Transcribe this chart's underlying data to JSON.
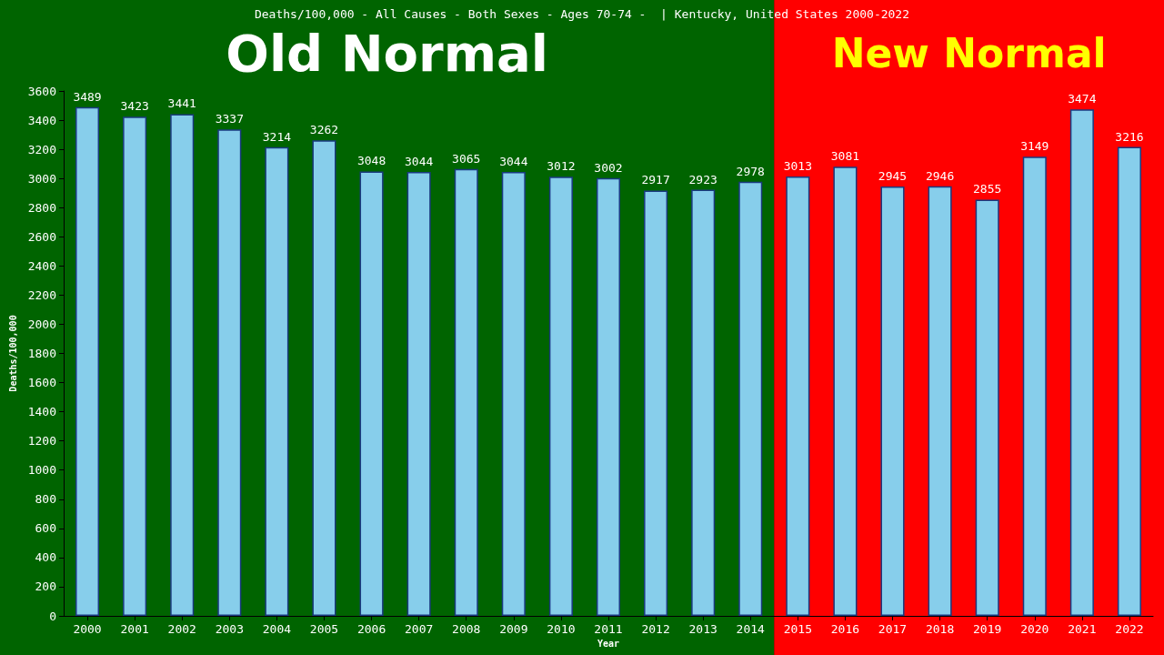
{
  "chart_data": {
    "type": "bar",
    "title": "Deaths/100,000 - All Causes - Both Sexes - Ages 70-74 -  | Kentucky, United States 2000-2022",
    "xlabel": "Year",
    "ylabel": "Deaths/100,000",
    "categories": [
      "2000",
      "2001",
      "2002",
      "2003",
      "2004",
      "2005",
      "2006",
      "2007",
      "2008",
      "2009",
      "2010",
      "2011",
      "2012",
      "2013",
      "2014",
      "2015",
      "2016",
      "2017",
      "2018",
      "2019",
      "2020",
      "2021",
      "2022"
    ],
    "values": [
      3489,
      3423,
      3441,
      3337,
      3214,
      3262,
      3048,
      3044,
      3065,
      3044,
      3012,
      3002,
      2917,
      2923,
      2978,
      3013,
      3081,
      2945,
      2946,
      2855,
      3149,
      3474,
      3216
    ],
    "color": "#87ceeb",
    "data_labels": true,
    "grid": false,
    "ylim": [
      0,
      3600
    ],
    "yticks": [
      0,
      200,
      400,
      600,
      800,
      1000,
      1200,
      1400,
      1600,
      1800,
      2000,
      2200,
      2400,
      2600,
      2800,
      3000,
      3200,
      3400,
      3600
    ],
    "bands": [
      {
        "axis": "x",
        "from": "2000",
        "to": "2014",
        "label": "Old Normal",
        "color": "#006400"
      },
      {
        "axis": "x",
        "from": "2015",
        "to": "2022",
        "label": "New Normal",
        "color": "#ff0000"
      }
    ]
  }
}
